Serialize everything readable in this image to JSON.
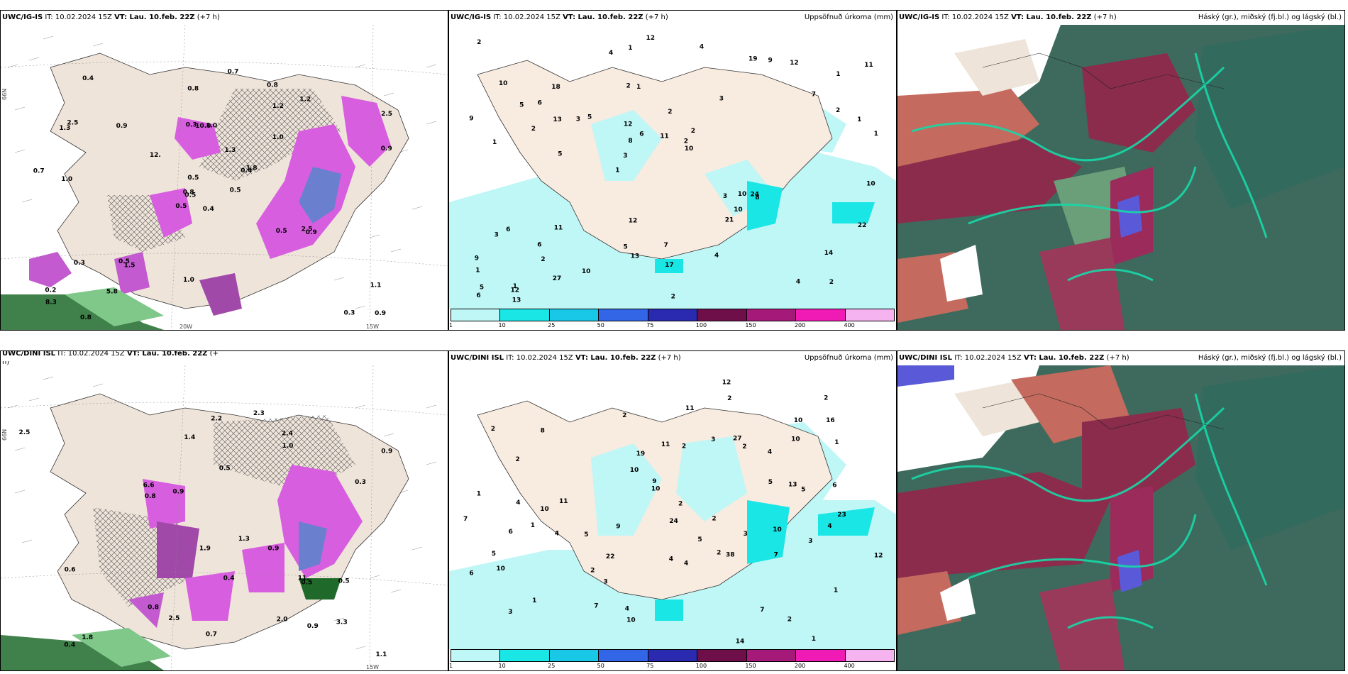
{
  "panels": [
    {
      "model": "UWC/IG-IS",
      "it": "IT: 10.02.2024 15Z",
      "vt": "VT: Lau. 10.feb. 22Z",
      "lead": "(+7 h)",
      "right": ""
    },
    {
      "model": "UWC/IG-IS",
      "it": "IT: 10.02.2024 15Z",
      "vt": "VT: Lau. 10.feb. 22Z",
      "lead": "(+7 h)",
      "right": "Uppsöfnuð úrkoma (mm)"
    },
    {
      "model": "UWC/IG-IS",
      "it": "IT: 10.02.2024 15Z",
      "vt": "VT: Lau. 10.feb. 22Z",
      "lead": "(+7 h)",
      "right": "Háský (gr.), miðský (fj.bl.) og lágský (bl.)"
    },
    {
      "model": "UWC/DINI ISL",
      "it": "IT: 10.02.2024 15Z",
      "vt": "VT: Lau. 10.feb. 22Z",
      "lead": "(+",
      "right": ""
    },
    {
      "model": "UWC/DINI ISL",
      "it": "IT: 10.02.2024 15Z",
      "vt": "VT: Lau. 10.feb. 22Z",
      "lead": "(+7 h)",
      "right": "Uppsöfnuð úrkoma (mm)"
    },
    {
      "model": "UWC/DINI ISL",
      "it": "IT: 10.02.2024 15Z",
      "vt": "VT: Lau. 10.feb. 22Z",
      "lead": "(+7 h)",
      "right": "Háský (gr.), miðský (fj.bl.) og lágský (bl.)"
    }
  ],
  "h_fragment": "h)",
  "axis_labels": {
    "lat_66": "66N",
    "lon_20": "20W",
    "lon_15": "15W",
    "lon_15b": "15W"
  },
  "legend": {
    "ticks": [
      "1",
      "10",
      "25",
      "50",
      "75",
      "100",
      "150",
      "200",
      "400"
    ],
    "colors": [
      "#bff6f6",
      "#1ae6e6",
      "#19c8e6",
      "#3366e6",
      "#2a2ab0",
      "#6e0f4a",
      "#a51a78",
      "#f01ab4",
      "#f5b4f0"
    ]
  },
  "precip_values_top": [
    "2",
    "1",
    "1",
    "1",
    "3",
    "1",
    "2",
    "2",
    "6",
    "5",
    "1",
    "2",
    "1",
    "2",
    "8",
    "10",
    "1",
    "1",
    "3",
    "2",
    "3",
    "5",
    "8",
    "18",
    "19",
    "11",
    "4",
    "14",
    "24",
    "2",
    "3",
    "2",
    "21",
    "27",
    "1",
    "2",
    "5",
    "13",
    "10",
    "3",
    "7",
    "11",
    "10",
    "4",
    "6",
    "13",
    "6",
    "7",
    "12",
    "12",
    "5",
    "9",
    "6",
    "9",
    "12",
    "4",
    "4",
    "6",
    "22",
    "12",
    "10",
    "10",
    "13",
    "9",
    "2",
    "5",
    "10",
    "12",
    "17",
    "11"
  ],
  "precip_values_bottom": [
    "1",
    "1",
    "2",
    "2",
    "1",
    "2",
    "1",
    "5",
    "4",
    "11",
    "2",
    "2",
    "3",
    "2",
    "2",
    "10",
    "10",
    "2",
    "1",
    "3",
    "2",
    "2",
    "13",
    "12",
    "23",
    "4",
    "4",
    "24",
    "10",
    "16",
    "38",
    "6",
    "2",
    "27",
    "19",
    "3",
    "4",
    "7",
    "10",
    "14",
    "22",
    "4",
    "7",
    "12",
    "9",
    "10",
    "1",
    "2",
    "3",
    "4",
    "3",
    "6",
    "7",
    "5",
    "10",
    "7",
    "10",
    "9",
    "5",
    "5",
    "4",
    "10",
    "8",
    "11",
    "6",
    "5",
    "11"
  ],
  "snow_values_top": [
    "0.4",
    "1.3",
    "0.5",
    "0.2",
    "0.4",
    "1.5",
    "0.8",
    "1.0",
    "1.2",
    "0.5",
    "0.4",
    "0.9",
    "1.0",
    "2.5",
    "0.5",
    "1.0",
    "0.8",
    "0.3",
    "1.3",
    "0.3",
    "12.",
    "8.3",
    "5.8",
    "10.0",
    "1.8",
    "0.9",
    "2.5",
    "0.8",
    "0.7",
    "0.5",
    "0.9",
    "0.8",
    "1.0",
    "0.5",
    "0.9",
    "1.2",
    "0.5",
    "0.3",
    "1.1",
    "2.5",
    "0.7"
  ],
  "snow_values_bottom": [
    "0.4",
    "0.5",
    "1.3",
    "0.4",
    "1.4",
    "2.3",
    "3.3",
    "2.4",
    "0.9",
    "0.8",
    "1.1",
    "0.8",
    "2.5",
    "2.2",
    "2.0",
    "6.6",
    "11.",
    "0.6",
    "1.9",
    "0.9",
    "2.5",
    "1.8",
    "0.7",
    "0.9",
    "0.5",
    "1.0",
    "0.9",
    "0.5",
    "0.3"
  ]
}
